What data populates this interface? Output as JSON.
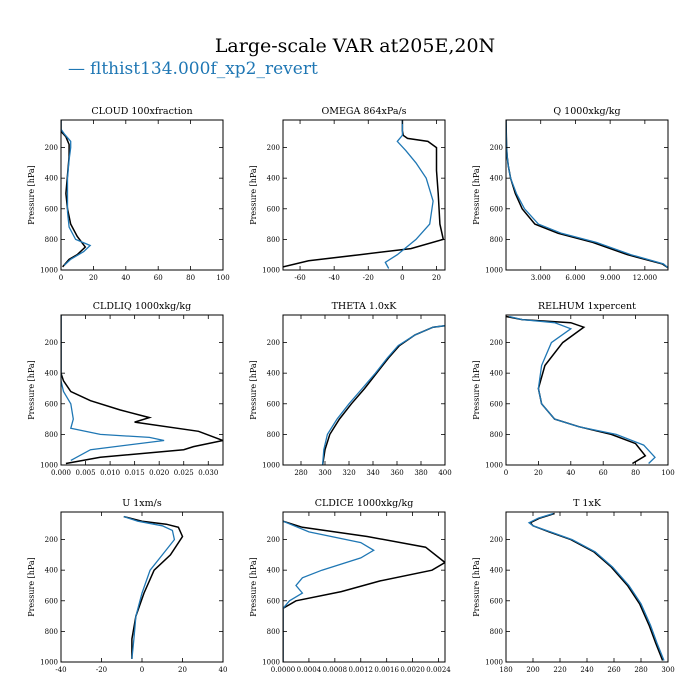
{
  "figure": {
    "title": "Large-scale VAR at205E,20N",
    "legend_label": "flthist134.000f_xp2_revert",
    "legend_marker": "—",
    "colors": {
      "reference": "#000000",
      "experiment": "#1f77b4"
    }
  },
  "chart_data": [
    {
      "type": "line",
      "title": "CLOUD  100xfraction",
      "ylabel": "Pressure [hPa]",
      "xlim": [
        0,
        100
      ],
      "ylim": [
        1000,
        20
      ],
      "y_inverted": true,
      "xticks": [
        0,
        20,
        40,
        60,
        80,
        100
      ],
      "xticklabels": [
        "0",
        "20",
        "40",
        "60",
        "80",
        "100"
      ],
      "yticks": [
        200,
        400,
        600,
        800,
        1000
      ],
      "yticklabels": [
        "200",
        "400",
        "600",
        "800",
        "1000"
      ],
      "series": [
        {
          "color": "#000000",
          "x": [
            0,
            0,
            0.5,
            3,
            5,
            5,
            4,
            3,
            4,
            6,
            10,
            15,
            10,
            5,
            1
          ],
          "y": [
            20,
            80,
            100,
            130,
            180,
            260,
            380,
            500,
            600,
            700,
            780,
            850,
            900,
            930,
            980
          ]
        },
        {
          "color": "#1f77b4",
          "x": [
            0,
            0,
            2,
            6,
            6,
            5,
            4,
            4,
            4,
            5,
            9,
            18,
            14,
            6,
            2
          ],
          "y": [
            20,
            80,
            110,
            160,
            200,
            280,
            400,
            500,
            620,
            720,
            800,
            840,
            880,
            930,
            970
          ]
        }
      ]
    },
    {
      "type": "line",
      "title": "OMEGA  864xPa/s",
      "ylabel": "Pressure [hPa]",
      "xlim": [
        -70,
        25
      ],
      "ylim": [
        1000,
        20
      ],
      "y_inverted": true,
      "xticks": [
        -60,
        -40,
        -20,
        0,
        20
      ],
      "xticklabels": [
        "-60",
        "-40",
        "-20",
        "0",
        "20"
      ],
      "yticks": [
        200,
        400,
        600,
        800,
        1000
      ],
      "yticklabels": [
        "200",
        "400",
        "600",
        "800",
        "1000"
      ],
      "series": [
        {
          "color": "#000000",
          "x": [
            0,
            0,
            0.5,
            3,
            15,
            20,
            20,
            21,
            22,
            24,
            5,
            -25,
            -55,
            -70
          ],
          "y": [
            20,
            90,
            120,
            140,
            160,
            200,
            350,
            500,
            700,
            800,
            860,
            900,
            940,
            980
          ]
        },
        {
          "color": "#1f77b4",
          "x": [
            0,
            0,
            0,
            -3,
            2,
            8,
            14,
            18,
            16,
            8,
            -3,
            -10,
            -8
          ],
          "y": [
            20,
            90,
            120,
            160,
            220,
            300,
            400,
            550,
            700,
            800,
            900,
            950,
            990
          ]
        }
      ]
    },
    {
      "type": "line",
      "title": "Q  1000xkg/kg",
      "ylabel": "Pressure [hPa]",
      "xlim": [
        0,
        14
      ],
      "ylim": [
        1000,
        20
      ],
      "y_inverted": true,
      "xticks": [
        3,
        6,
        9,
        12
      ],
      "xticklabels": [
        "3.000",
        "6.000",
        "9.000",
        "12.000"
      ],
      "yticks": [
        200,
        400,
        600,
        800,
        1000
      ],
      "yticklabels": [
        "200",
        "400",
        "600",
        "800",
        "1000"
      ],
      "series": [
        {
          "color": "#000000",
          "x": [
            0,
            0.05,
            0.1,
            0.2,
            0.4,
            0.8,
            1.4,
            2.5,
            4.5,
            7.5,
            10.5,
            13.5,
            14
          ],
          "y": [
            20,
            200,
            260,
            320,
            400,
            500,
            600,
            700,
            760,
            820,
            900,
            960,
            985
          ]
        },
        {
          "color": "#1f77b4",
          "x": [
            0,
            0.05,
            0.1,
            0.2,
            0.4,
            0.9,
            1.6,
            2.8,
            4.8,
            7.8,
            10.8,
            13.6,
            14
          ],
          "y": [
            20,
            200,
            260,
            320,
            400,
            500,
            600,
            700,
            760,
            820,
            900,
            960,
            985
          ]
        }
      ]
    },
    {
      "type": "line",
      "title": "CLDLIQ  1000xkg/kg",
      "ylabel": "Pressure [hPa]",
      "xlim": [
        0,
        0.033
      ],
      "ylim": [
        1000,
        20
      ],
      "y_inverted": true,
      "xticks": [
        0,
        0.005,
        0.01,
        0.015,
        0.02,
        0.025,
        0.03
      ],
      "xticklabels": [
        "0.000",
        "0.005",
        "0.010",
        "0.015",
        "0.020",
        "0.025",
        "0.030"
      ],
      "yticks": [
        200,
        400,
        600,
        800,
        1000
      ],
      "yticklabels": [
        "200",
        "400",
        "600",
        "800",
        "1000"
      ],
      "series": [
        {
          "color": "#000000",
          "x": [
            0,
            0,
            0.0005,
            0.002,
            0.006,
            0.012,
            0.018,
            0.015,
            0.028,
            0.033,
            0.027,
            0.025,
            0.008,
            0.001
          ],
          "y": [
            20,
            400,
            450,
            520,
            580,
            640,
            690,
            720,
            780,
            840,
            880,
            900,
            950,
            990
          ]
        },
        {
          "color": "#1f77b4",
          "x": [
            0,
            0,
            0.0005,
            0.002,
            0.0025,
            0.002,
            0.008,
            0.018,
            0.021,
            0.006,
            0.002
          ],
          "y": [
            20,
            450,
            520,
            600,
            700,
            760,
            800,
            820,
            840,
            900,
            970
          ]
        }
      ]
    },
    {
      "type": "line",
      "title": "THETA  1.0xK",
      "ylabel": "Pressure [hPa]",
      "xlim": [
        265,
        400
      ],
      "ylim": [
        1000,
        20
      ],
      "y_inverted": true,
      "xticks": [
        280,
        300,
        320,
        340,
        360,
        380,
        400
      ],
      "xticklabels": [
        "280",
        "300",
        "320",
        "340",
        "360",
        "380",
        "400"
      ],
      "yticks": [
        200,
        400,
        600,
        800,
        1000
      ],
      "yticklabels": [
        "200",
        "400",
        "600",
        "800",
        "1000"
      ],
      "series": [
        {
          "color": "#000000",
          "x": [
            298,
            300,
            304,
            312,
            322,
            333,
            343,
            353,
            362,
            375,
            390,
            400
          ],
          "y": [
            1000,
            900,
            800,
            700,
            600,
            500,
            400,
            300,
            220,
            150,
            100,
            90
          ]
        },
        {
          "color": "#1f77b4",
          "x": [
            298,
            299,
            302,
            310,
            320,
            331,
            342,
            352,
            361,
            375,
            390,
            400
          ],
          "y": [
            1000,
            900,
            800,
            700,
            600,
            500,
            400,
            300,
            220,
            150,
            100,
            90
          ]
        }
      ]
    },
    {
      "type": "line",
      "title": "RELHUM  1xpercent",
      "ylabel": "Pressure [hPa]",
      "xlim": [
        0,
        100
      ],
      "ylim": [
        1000,
        20
      ],
      "y_inverted": true,
      "xticks": [
        0,
        20,
        40,
        60,
        80,
        100
      ],
      "xticklabels": [
        "0",
        "20",
        "40",
        "60",
        "80",
        "100"
      ],
      "yticks": [
        200,
        400,
        600,
        800,
        1000
      ],
      "yticklabels": [
        "200",
        "400",
        "600",
        "800",
        "1000"
      ],
      "series": [
        {
          "color": "#000000",
          "x": [
            0,
            10,
            40,
            48,
            35,
            24,
            20,
            22,
            30,
            45,
            65,
            80,
            86,
            78
          ],
          "y": [
            30,
            50,
            70,
            100,
            200,
            350,
            500,
            600,
            700,
            750,
            800,
            860,
            940,
            990
          ]
        },
        {
          "color": "#1f77b4",
          "x": [
            2,
            10,
            30,
            40,
            28,
            22,
            20,
            22,
            30,
            45,
            68,
            85,
            92,
            88
          ],
          "y": [
            30,
            50,
            70,
            110,
            200,
            350,
            500,
            600,
            700,
            750,
            800,
            870,
            950,
            990
          ]
        }
      ]
    },
    {
      "type": "line",
      "title": "U  1xm/s",
      "ylabel": "Pressure [hPa]",
      "xlim": [
        -40,
        40
      ],
      "ylim": [
        1000,
        20
      ],
      "y_inverted": true,
      "xticks": [
        -40,
        -20,
        0,
        20,
        40
      ],
      "xticklabels": [
        "-40",
        "-20",
        "0",
        "20",
        "40"
      ],
      "yticks": [
        200,
        400,
        600,
        800,
        1000
      ],
      "yticklabels": [
        "200",
        "400",
        "600",
        "800",
        "1000"
      ],
      "series": [
        {
          "color": "#000000",
          "x": [
            -9,
            0,
            12,
            18,
            20,
            14,
            6,
            1,
            -3,
            -5,
            -5
          ],
          "y": [
            50,
            80,
            100,
            120,
            180,
            300,
            400,
            550,
            700,
            850,
            980
          ]
        },
        {
          "color": "#1f77b4",
          "x": [
            -9,
            -2,
            10,
            15,
            16,
            10,
            4,
            0,
            -3,
            -4,
            -5
          ],
          "y": [
            50,
            80,
            110,
            140,
            200,
            300,
            400,
            550,
            700,
            850,
            980
          ]
        }
      ]
    },
    {
      "type": "line",
      "title": "CLDICE  1000xkg/kg",
      "ylabel": "Pressure [hPa]",
      "xlim": [
        0,
        0.0025
      ],
      "ylim": [
        1000,
        20
      ],
      "y_inverted": true,
      "xticks": [
        0,
        0.0004,
        0.0008,
        0.0012,
        0.0016,
        0.002,
        0.0024
      ],
      "xticklabels": [
        "0.0000",
        "0.0004",
        "0.0008",
        "0.0012",
        "0.0016",
        "0.0020",
        "0.0024"
      ],
      "yticks": [
        200,
        400,
        600,
        800,
        1000
      ],
      "yticklabels": [
        "200",
        "400",
        "600",
        "800",
        "1000"
      ],
      "series": [
        {
          "color": "#000000",
          "x": [
            0,
            0.0003,
            0.0013,
            0.0022,
            0.0025,
            0.0023,
            0.0015,
            0.0009,
            0.0002,
            0,
            0
          ],
          "y": [
            80,
            120,
            180,
            250,
            350,
            400,
            470,
            540,
            600,
            650,
            1000
          ]
        },
        {
          "color": "#1f77b4",
          "x": [
            0,
            0.0004,
            0.0012,
            0.0014,
            0.0012,
            0.0006,
            0.0003,
            0.0002,
            0.0003,
            0.0001,
            0,
            0
          ],
          "y": [
            80,
            150,
            220,
            270,
            320,
            400,
            450,
            500,
            550,
            600,
            650,
            1000
          ]
        }
      ]
    },
    {
      "type": "line",
      "title": "T  1xK",
      "ylabel": "Pressure [hPa]",
      "xlim": [
        180,
        300
      ],
      "ylim": [
        1000,
        20
      ],
      "y_inverted": true,
      "xticks": [
        180,
        200,
        220,
        240,
        260,
        280,
        300
      ],
      "xticklabels": [
        "180",
        "200",
        "220",
        "240",
        "260",
        "280",
        "300"
      ],
      "yticks": [
        200,
        400,
        600,
        800,
        1000
      ],
      "yticklabels": [
        "200",
        "400",
        "600",
        "800",
        "1000"
      ],
      "series": [
        {
          "color": "#000000",
          "x": [
            216,
            205,
            198,
            200,
            212,
            228,
            245,
            258,
            270,
            279,
            286,
            291,
            296
          ],
          "y": [
            30,
            60,
            90,
            110,
            150,
            200,
            280,
            380,
            500,
            620,
            760,
            880,
            990
          ]
        },
        {
          "color": "#1f77b4",
          "x": [
            215,
            204,
            197,
            200,
            213,
            229,
            246,
            259,
            271,
            280,
            287,
            292,
            297
          ],
          "y": [
            30,
            60,
            90,
            110,
            150,
            200,
            280,
            380,
            500,
            620,
            760,
            880,
            990
          ]
        }
      ]
    }
  ]
}
